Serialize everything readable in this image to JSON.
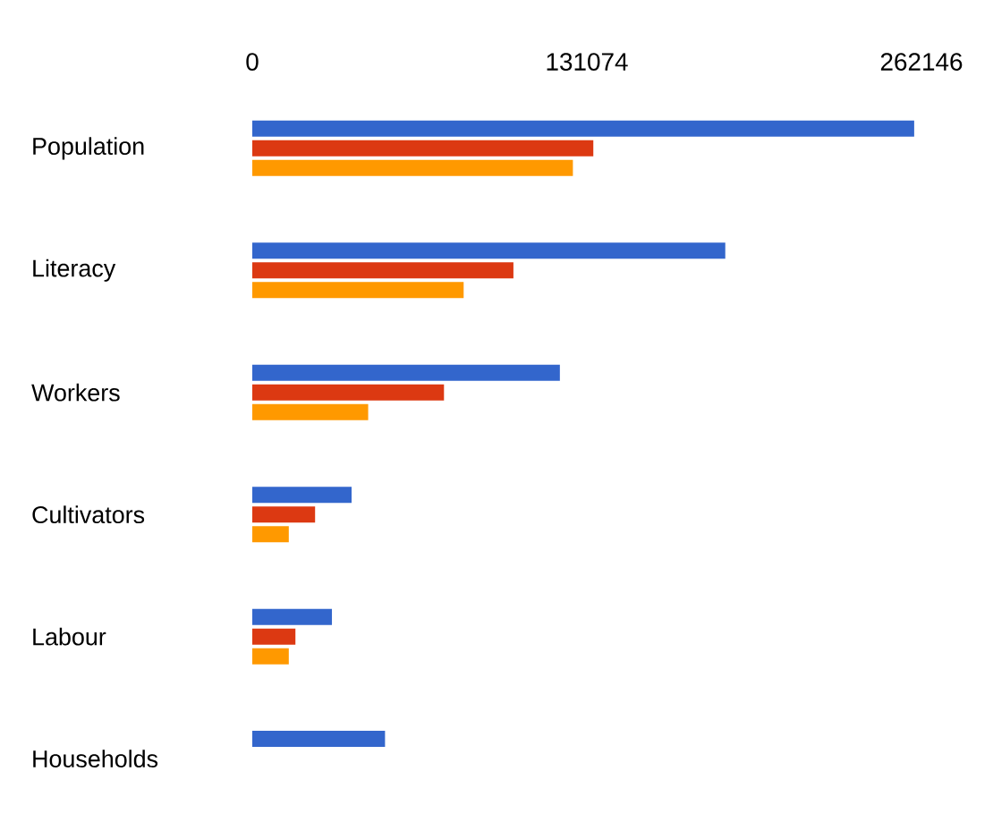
{
  "chart_data": {
    "type": "bar",
    "orientation": "horizontal",
    "categories": [
      "Population",
      "Literacy",
      "Workers",
      "Cultivators",
      "Labour",
      "Households"
    ],
    "series": [
      {
        "color": "#3366cc",
        "values": [
          259300,
          185300,
          120500,
          38900,
          31200,
          52000
        ]
      },
      {
        "color": "#dc3912",
        "values": [
          133600,
          102300,
          75100,
          24600,
          16900,
          null
        ]
      },
      {
        "color": "#ff9900",
        "values": [
          125600,
          82800,
          45400,
          14300,
          14300,
          null
        ]
      }
    ],
    "xlim": [
      0,
      262146
    ],
    "xticks": [
      0,
      131074,
      262146
    ]
  }
}
